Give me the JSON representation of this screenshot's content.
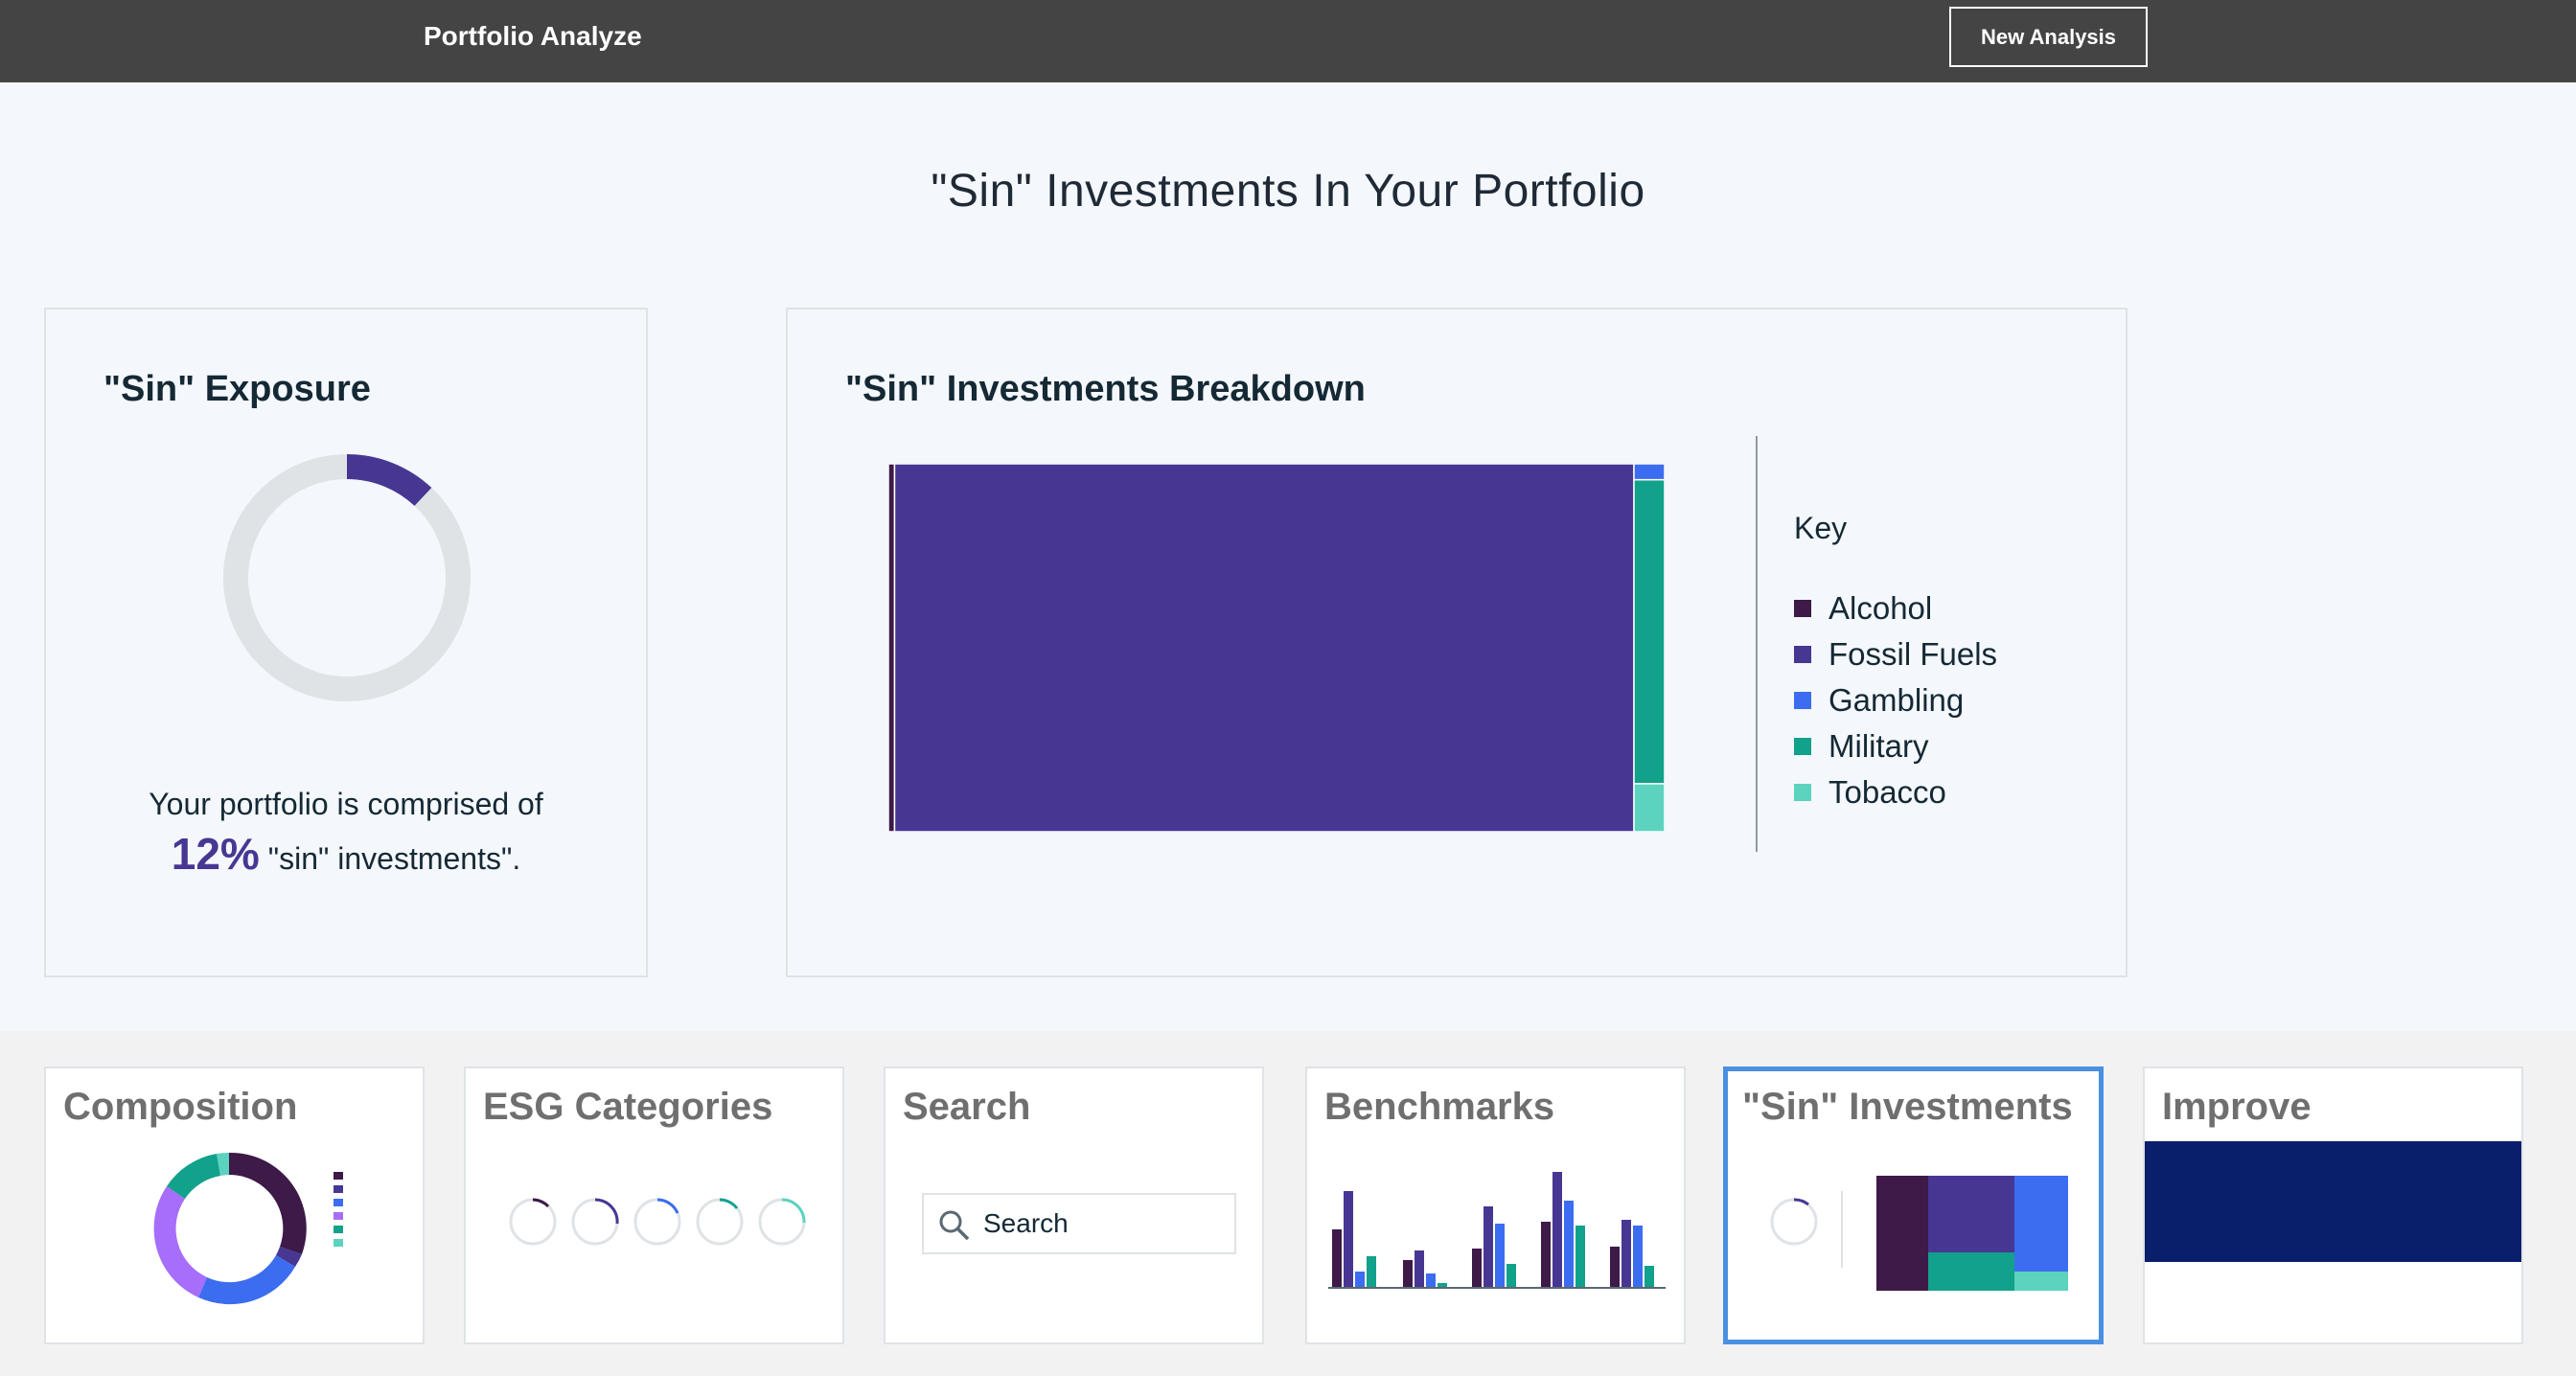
{
  "header": {
    "app_title": "Portfolio Analyze",
    "new_analysis_label": "New Analysis"
  },
  "page": {
    "title": "\"Sin\" Investments In Your Portfolio"
  },
  "exposure": {
    "title": "\"Sin\" Exposure",
    "value_fraction": 0.12,
    "text_before": "Your portfolio is comprised of",
    "percent_label": "12%",
    "text_after": "\"sin\" investments\".",
    "colors": {
      "filled": "#473793",
      "track": "#dfe3e6"
    }
  },
  "breakdown": {
    "title": "\"Sin\" Investments Breakdown",
    "key_title": "Key",
    "chart_data": {
      "type": "treemap",
      "categories": [
        "Alcohol",
        "Fossil Fuels",
        "Gambling",
        "Military",
        "Tobacco"
      ],
      "values": [
        0.8,
        94.6,
        0.2,
        3.8,
        0.6
      ],
      "colors": [
        "#3d1a47",
        "#473793",
        "#3c6df0",
        "#12a18a",
        "#5bd3bf"
      ]
    },
    "legend": [
      {
        "label": "Alcohol",
        "color": "#3d1a47"
      },
      {
        "label": "Fossil Fuels",
        "color": "#473793"
      },
      {
        "label": "Gambling",
        "color": "#3c6df0"
      },
      {
        "label": "Military",
        "color": "#12a18a"
      },
      {
        "label": "Tobacco",
        "color": "#5bd3bf"
      }
    ]
  },
  "tiles": [
    {
      "id": "composition",
      "title": "Composition"
    },
    {
      "id": "esg",
      "title": "ESG Categories"
    },
    {
      "id": "search",
      "title": "Search",
      "search_placeholder": "Search"
    },
    {
      "id": "benchmarks",
      "title": "Benchmarks"
    },
    {
      "id": "sin",
      "title": "\"Sin\" Investments",
      "active": true
    },
    {
      "id": "improve",
      "title": "Improve"
    }
  ]
}
